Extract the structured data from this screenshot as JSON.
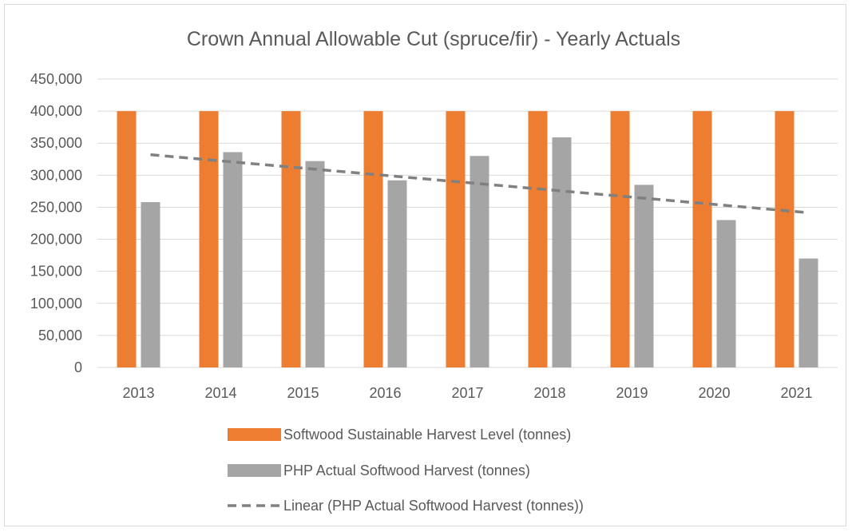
{
  "chart_data": {
    "type": "bar",
    "title": "Crown Annual Allowable Cut (spruce/fir) - Yearly Actuals",
    "xlabel": "",
    "ylabel": "",
    "categories": [
      "2013",
      "2014",
      "2015",
      "2016",
      "2017",
      "2018",
      "2019",
      "2020",
      "2021"
    ],
    "ylim": [
      0,
      450000
    ],
    "y_ticks": [
      0,
      50000,
      100000,
      150000,
      200000,
      250000,
      300000,
      350000,
      400000,
      450000
    ],
    "y_tick_labels": [
      "0",
      "50,000",
      "100,000",
      "150,000",
      "200,000",
      "250,000",
      "300,000",
      "350,000",
      "400,000",
      "450,000"
    ],
    "grid": true,
    "legend_position": "bottom",
    "series": [
      {
        "name": "Softwood Sustainable Harvest Level (tonnes)",
        "color": "#ED7D31",
        "values": [
          400000,
          400000,
          400000,
          400000,
          400000,
          400000,
          400000,
          400000,
          400000
        ]
      },
      {
        "name": "PHP Actual Softwood Harvest (tonnes)",
        "color": "#A5A5A5",
        "values": [
          258000,
          336000,
          322000,
          292000,
          330000,
          359000,
          285000,
          230000,
          170000
        ]
      }
    ],
    "trendline": {
      "name": "Linear (PHP Actual Softwood Harvest (tonnes))",
      "color": "#808080",
      "style": "dashed",
      "values": [
        332000,
        321000,
        309500,
        298000,
        287000,
        275500,
        264000,
        253000,
        241500
      ]
    }
  }
}
